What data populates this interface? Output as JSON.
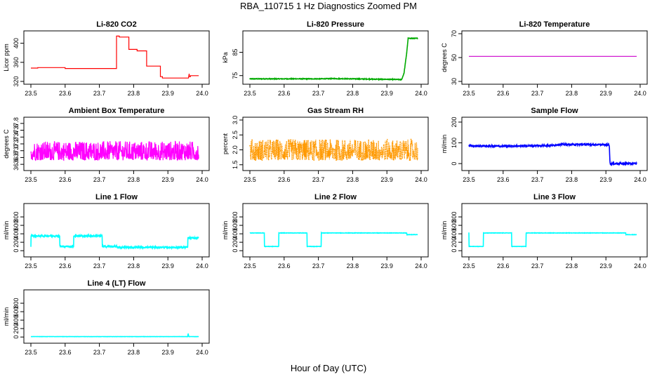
{
  "figure": {
    "title": "RBA_110715  1 Hz Diagnostics Zoomed PM",
    "xlabel": "Hour of Day (UTC)"
  },
  "chart_data": [
    {
      "type": "line",
      "title": "Li-820 CO2",
      "ylabel": "Licor ppm",
      "color": "#ff0000",
      "xlim": [
        23.5,
        24.0
      ],
      "xticks": [
        23.5,
        23.6,
        23.7,
        23.8,
        23.9,
        24.0
      ],
      "xtick_labels": [
        "23.5",
        "23.6",
        "23.7",
        "23.8",
        "23.9",
        "24.0"
      ],
      "ylim": [
        320,
        420
      ],
      "yticks": [
        320,
        360,
        400
      ],
      "ytick_labels": [
        "320",
        "360",
        "400"
      ],
      "series": [
        {
          "x": [
            23.5,
            23.52,
            23.52,
            23.6,
            23.6,
            23.75,
            23.75,
            23.758,
            23.758,
            23.786,
            23.786,
            23.81,
            23.81,
            23.838,
            23.838,
            23.878,
            23.878,
            23.884,
            23.884,
            23.96,
            23.962,
            23.963,
            23.966,
            23.966,
            23.99
          ],
          "y": [
            348,
            348,
            349,
            349,
            347,
            347,
            415,
            415,
            413,
            413,
            387,
            387,
            384,
            384,
            352,
            352,
            330,
            330,
            327,
            327,
            336,
            330,
            330,
            332,
            332
          ]
        }
      ],
      "noise": 0
    },
    {
      "type": "line",
      "title": "Li-820 Pressure",
      "ylabel": "kPa",
      "color": "#00aa00",
      "xlim": [
        23.5,
        24.0
      ],
      "xticks": [
        23.5,
        23.6,
        23.7,
        23.8,
        23.9,
        24.0
      ],
      "xtick_labels": [
        "23.5",
        "23.6",
        "23.7",
        "23.8",
        "23.9",
        "24.0"
      ],
      "ylim": [
        72.5,
        93
      ],
      "yticks": [
        75,
        85
      ],
      "ytick_labels": [
        "75",
        "85"
      ],
      "series": [
        {
          "x": [
            23.5,
            23.6,
            23.7,
            23.75,
            23.8,
            23.85,
            23.9,
            23.943,
            23.95,
            23.958,
            23.962,
            23.99
          ],
          "y": [
            73.6,
            73.6,
            73.6,
            73.7,
            73.6,
            73.5,
            73.4,
            73.3,
            76,
            85,
            91,
            91
          ]
        }
      ],
      "noise": 0.15
    },
    {
      "type": "line",
      "title": "Li-820 Temperature",
      "ylabel": "degrees C",
      "color": "#cc00cc",
      "xlim": [
        23.5,
        24.0
      ],
      "xticks": [
        23.5,
        23.6,
        23.7,
        23.8,
        23.9,
        24.0
      ],
      "xtick_labels": [
        "23.5",
        "23.6",
        "23.7",
        "23.8",
        "23.9",
        "24.0"
      ],
      "ylim": [
        30,
        70
      ],
      "yticks": [
        30,
        50,
        70
      ],
      "ytick_labels": [
        "30",
        "50",
        "70"
      ],
      "series": [
        {
          "x": [
            23.5,
            23.99
          ],
          "y": [
            51,
            51
          ]
        }
      ],
      "noise": 0
    },
    {
      "type": "line",
      "title": "Ambient Box Temperature",
      "ylabel": "degrees C",
      "color": "#ff00ff",
      "xlim": [
        23.5,
        24.0
      ],
      "xticks": [
        23.5,
        23.6,
        23.7,
        23.8,
        23.9,
        24.0
      ],
      "xtick_labels": [
        "23.5",
        "23.6",
        "23.7",
        "23.8",
        "23.9",
        "24.0"
      ],
      "ylim": [
        36.5,
        37.9
      ],
      "yticks": [
        36.6,
        36.8,
        37.0,
        37.2,
        37.4,
        37.6,
        37.8
      ],
      "ytick_labels": [
        "36.6",
        "36.8",
        "37.0",
        "37.2",
        "37.4",
        "37.6",
        "37.8"
      ],
      "series": [
        {
          "x": [
            23.5,
            23.99
          ],
          "y": [
            37.0,
            37.0
          ]
        }
      ],
      "noise": 0.28,
      "noise_min": 36.55,
      "noise_max": 37.85
    },
    {
      "type": "line",
      "title": "Gas Stream RH",
      "ylabel": "percent",
      "color": "#ff9900",
      "xlim": [
        23.5,
        24.0
      ],
      "xticks": [
        23.5,
        23.6,
        23.7,
        23.8,
        23.9,
        24.0
      ],
      "xtick_labels": [
        "23.5",
        "23.6",
        "23.7",
        "23.8",
        "23.9",
        "24.0"
      ],
      "ylim": [
        1.4,
        3.0
      ],
      "yticks": [
        1.5,
        2.0,
        2.5,
        3.0
      ],
      "ytick_labels": [
        "1.5",
        "2.0",
        "2.5",
        "3.0"
      ],
      "series": [
        {
          "x": [
            23.5,
            23.99
          ],
          "y": [
            2.0,
            2.0
          ]
        }
      ],
      "noise": 0.35,
      "noise_min": 1.6,
      "noise_max": 2.95
    },
    {
      "type": "line",
      "title": "Sample Flow",
      "ylabel": "ml/min",
      "color": "#0000ff",
      "xlim": [
        23.5,
        24.0
      ],
      "xticks": [
        23.5,
        23.6,
        23.7,
        23.8,
        23.9,
        24.0
      ],
      "xtick_labels": [
        "23.5",
        "23.6",
        "23.7",
        "23.8",
        "23.9",
        "24.0"
      ],
      "ylim": [
        -20,
        210
      ],
      "yticks": [
        0,
        100,
        200
      ],
      "ytick_labels": [
        "0",
        "100",
        "200"
      ],
      "series": [
        {
          "x": [
            23.5,
            23.6,
            23.7,
            23.75,
            23.76,
            23.85,
            23.91,
            23.912,
            23.99
          ],
          "y": [
            85,
            84,
            86,
            88,
            92,
            92,
            90,
            0,
            0
          ]
        }
      ],
      "noise": 4
    },
    {
      "type": "line",
      "title": "Line 1 Flow",
      "ylabel": "ml/min",
      "color": "#00ffff",
      "xlim": [
        23.5,
        24.0
      ],
      "xticks": [
        23.5,
        23.6,
        23.7,
        23.8,
        23.9,
        24.0
      ],
      "xtick_labels": [
        "23.5",
        "23.6",
        "23.7",
        "23.8",
        "23.9",
        "24.0"
      ],
      "ylim": [
        -80,
        1050
      ],
      "yticks": [
        0,
        200,
        400,
        600,
        800
      ],
      "ytick_labels": [
        "0",
        "200",
        "400",
        "600",
        "800"
      ],
      "series": [
        {
          "x": [
            23.5,
            23.5,
            23.584,
            23.584,
            23.625,
            23.625,
            23.708,
            23.708,
            23.75,
            23.75,
            23.958,
            23.958,
            23.99
          ],
          "y": [
            100,
            350,
            350,
            100,
            100,
            350,
            350,
            100,
            100,
            80,
            80,
            300,
            300
          ]
        }
      ],
      "noise": 18
    },
    {
      "type": "line",
      "title": "Line 2 Flow",
      "ylabel": "ml/min",
      "color": "#00ffff",
      "xlim": [
        23.5,
        24.0
      ],
      "xticks": [
        23.5,
        23.6,
        23.7,
        23.8,
        23.9,
        24.0
      ],
      "xtick_labels": [
        "23.5",
        "23.6",
        "23.7",
        "23.8",
        "23.9",
        "24.0"
      ],
      "ylim": [
        -80,
        1050
      ],
      "yticks": [
        0,
        200,
        400,
        600,
        800
      ],
      "ytick_labels": [
        "0",
        "200",
        "400",
        "600",
        "800"
      ],
      "series": [
        {
          "x": [
            23.5,
            23.542,
            23.542,
            23.584,
            23.584,
            23.667,
            23.667,
            23.708,
            23.708,
            23.958,
            23.958,
            23.99
          ],
          "y": [
            420,
            420,
            100,
            100,
            420,
            420,
            100,
            100,
            420,
            420,
            380,
            380
          ]
        }
      ],
      "noise": 4
    },
    {
      "type": "line",
      "title": "Line 3 Flow",
      "ylabel": "ml/min",
      "color": "#00ffff",
      "xlim": [
        23.5,
        24.0
      ],
      "xticks": [
        23.5,
        23.6,
        23.7,
        23.8,
        23.9,
        24.0
      ],
      "xtick_labels": [
        "23.5",
        "23.6",
        "23.7",
        "23.8",
        "23.9",
        "24.0"
      ],
      "ylim": [
        -80,
        1050
      ],
      "yticks": [
        0,
        200,
        400,
        600,
        800
      ],
      "ytick_labels": [
        "0",
        "200",
        "400",
        "600",
        "800"
      ],
      "series": [
        {
          "x": [
            23.5,
            23.5,
            23.542,
            23.542,
            23.625,
            23.625,
            23.667,
            23.667,
            23.958,
            23.958,
            23.99
          ],
          "y": [
            430,
            100,
            100,
            420,
            420,
            100,
            100,
            420,
            420,
            380,
            380
          ]
        }
      ],
      "noise": 4
    },
    {
      "type": "line",
      "title": "Line 4 (LT) Flow",
      "ylabel": "ml/min",
      "color": "#00ffff",
      "xlim": [
        23.5,
        24.0
      ],
      "xticks": [
        23.5,
        23.6,
        23.7,
        23.8,
        23.9,
        24.0
      ],
      "xtick_labels": [
        "23.5",
        "23.6",
        "23.7",
        "23.8",
        "23.9",
        "24.0"
      ],
      "ylim": [
        -80,
        1050
      ],
      "yticks": [
        0,
        200,
        400,
        600,
        800
      ],
      "ytick_labels": [
        "0",
        "200",
        "400",
        "600",
        "800"
      ],
      "series": [
        {
          "x": [
            23.5,
            23.958,
            23.959,
            23.961,
            23.99
          ],
          "y": [
            10,
            10,
            90,
            10,
            10
          ]
        }
      ],
      "noise": 2
    }
  ]
}
